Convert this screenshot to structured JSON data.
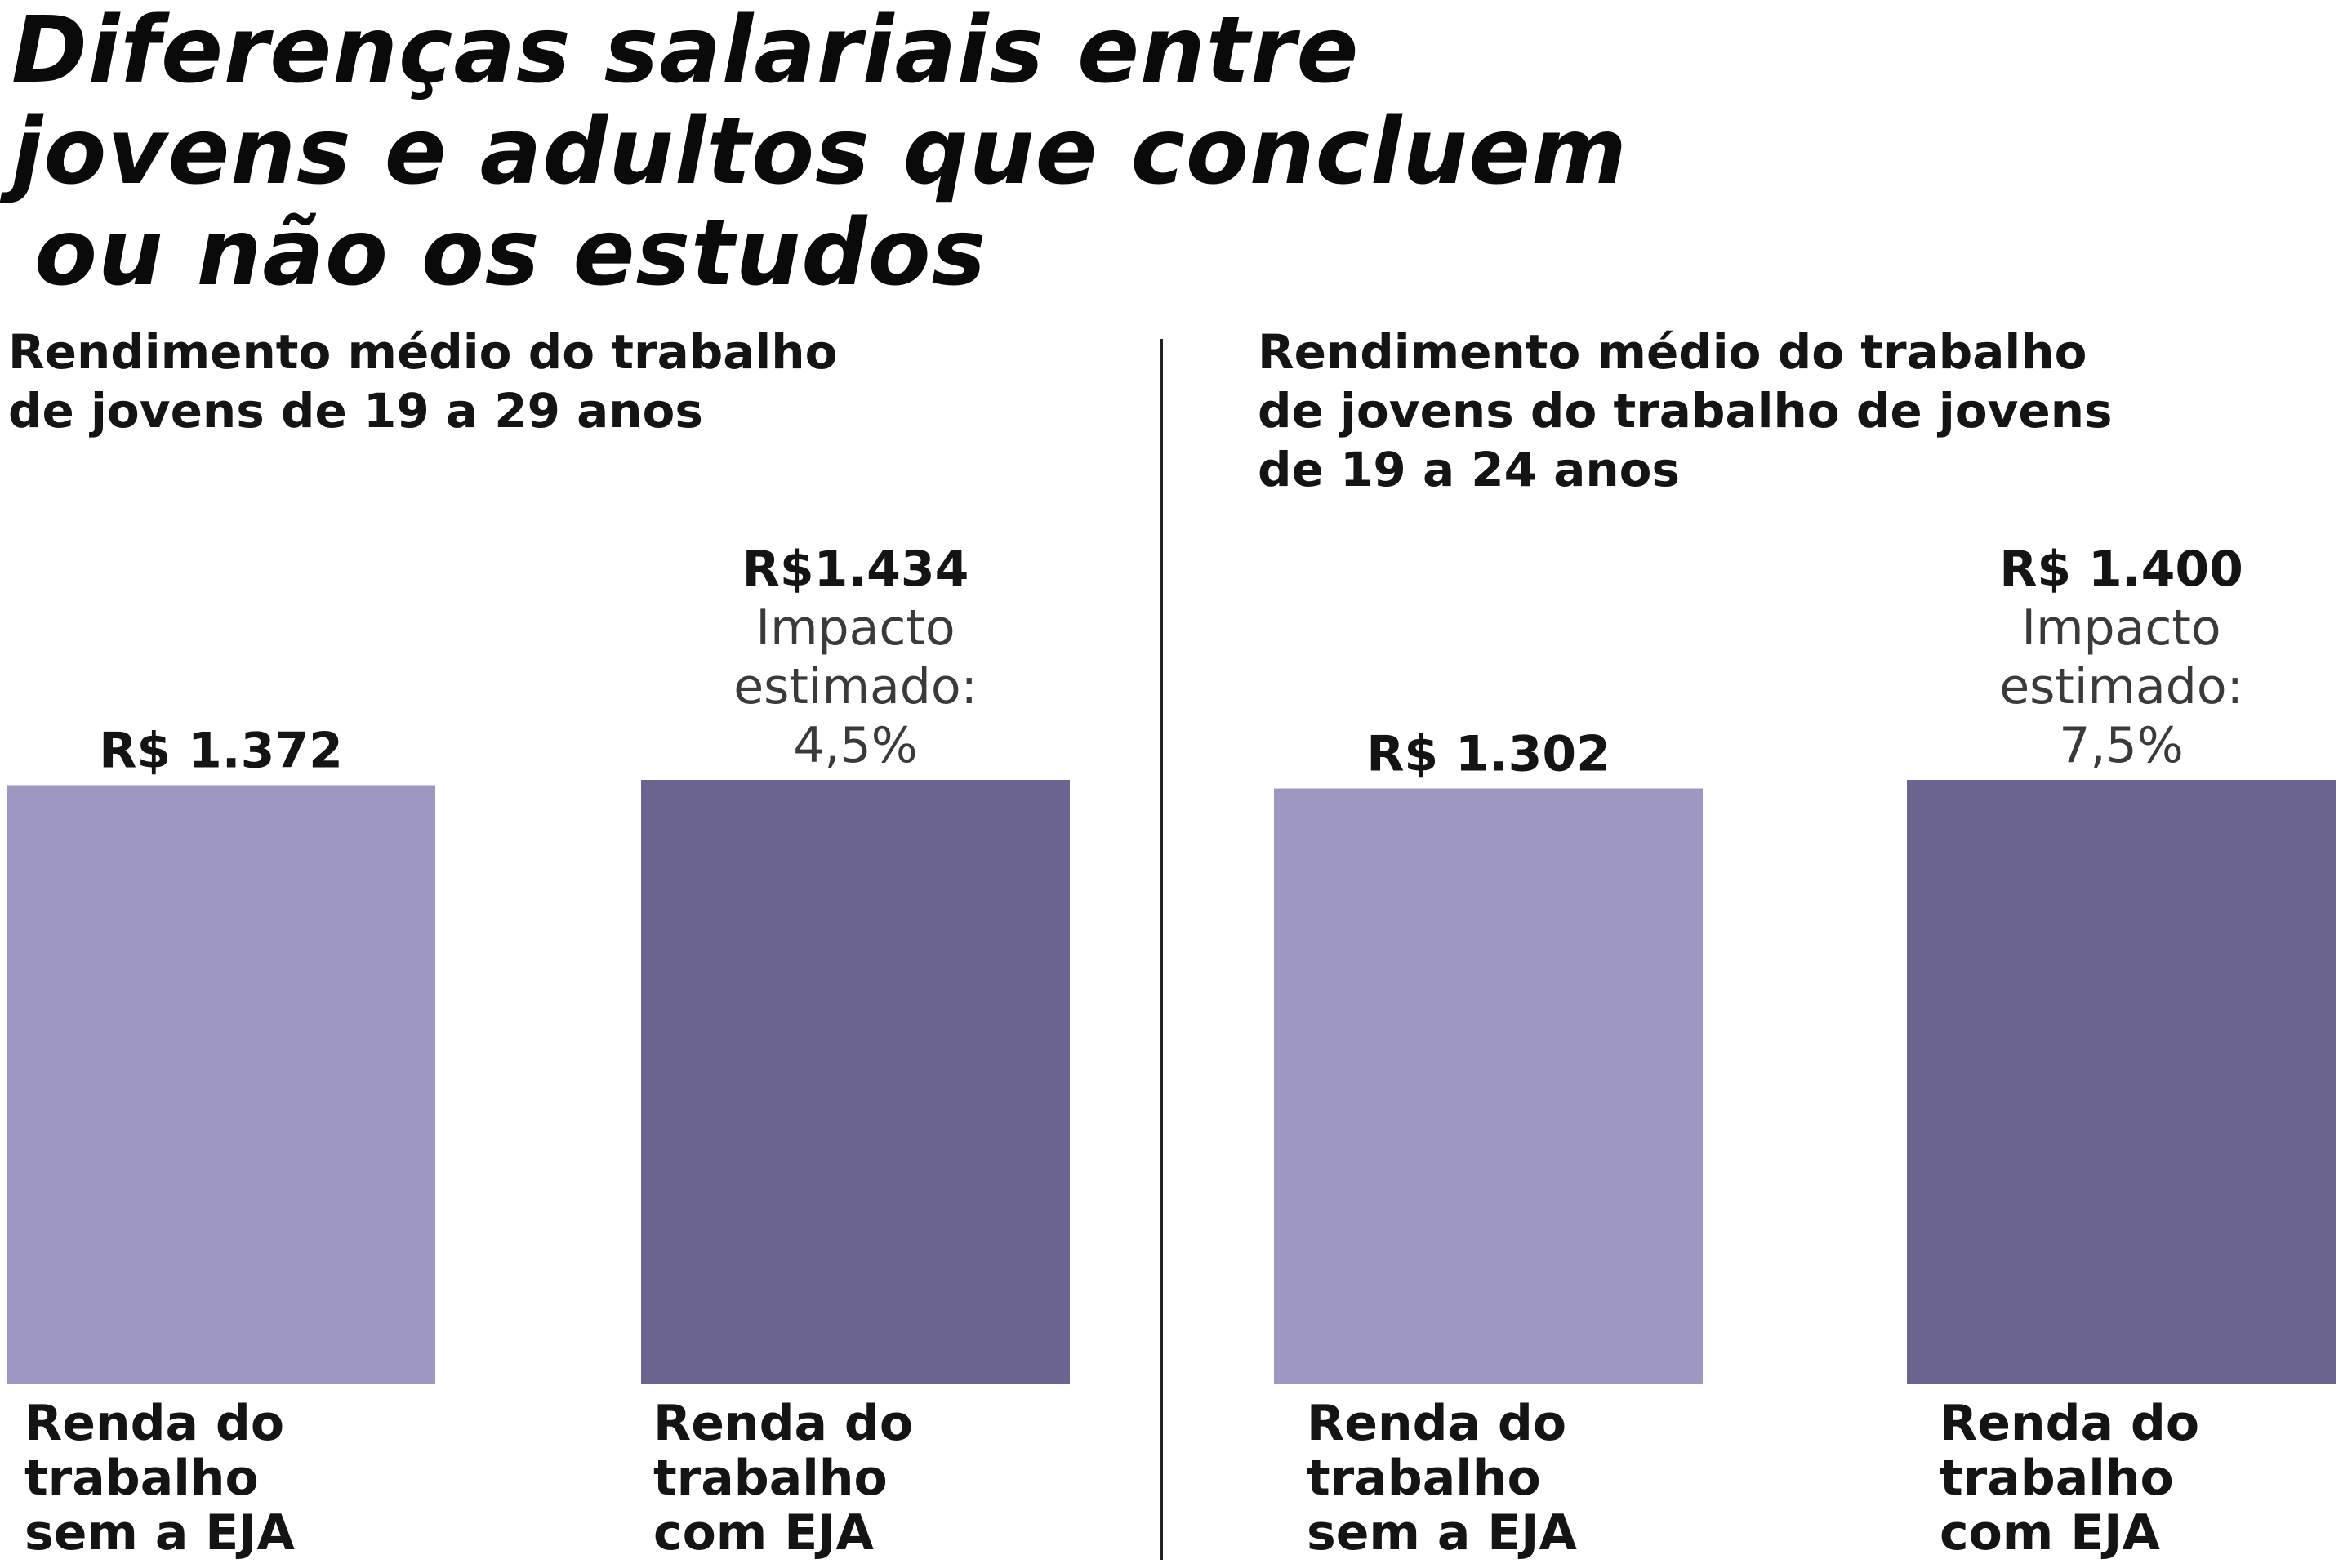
{
  "headline": {
    "line1": "Diferenças salariais entre",
    "line2": "jovens e adultos que concluem",
    "line3": "ou não os estudos"
  },
  "colors": {
    "light_bar": "#9e97c1",
    "dark_bar": "#6a648f",
    "divider": "#222222"
  },
  "chart_data": [
    {
      "type": "bar",
      "title_lines": [
        "Rendimento médio do trabalho",
        "de jovens de 19 a 29 anos"
      ],
      "categories": [
        [
          "Renda do",
          "trabalho",
          "sem a EJA"
        ],
        [
          "Renda do",
          "trabalho",
          "com EJA"
        ]
      ],
      "values": [
        1372,
        1434
      ],
      "value_labels": [
        "R$ 1.372",
        "R$1.434"
      ],
      "annotations": [
        [],
        [
          "Impacto",
          "estimado:",
          "4,5%"
        ]
      ],
      "ylim": [
        0,
        1434
      ],
      "grid": false
    },
    {
      "type": "bar",
      "title_lines": [
        "Rendimento médio do trabalho",
        "de jovens do trabalho de jovens",
        "de 19 a 24 anos"
      ],
      "categories": [
        [
          "Renda do",
          "trabalho",
          "sem a EJA"
        ],
        [
          "Renda do",
          "trabalho",
          "com EJA"
        ]
      ],
      "values": [
        1302,
        1400
      ],
      "value_labels": [
        "R$ 1.302",
        "R$ 1.400"
      ],
      "annotations": [
        [],
        [
          "Impacto",
          "estimado:",
          "7,5%"
        ]
      ],
      "ylim": [
        0,
        1400
      ],
      "grid": false
    }
  ]
}
